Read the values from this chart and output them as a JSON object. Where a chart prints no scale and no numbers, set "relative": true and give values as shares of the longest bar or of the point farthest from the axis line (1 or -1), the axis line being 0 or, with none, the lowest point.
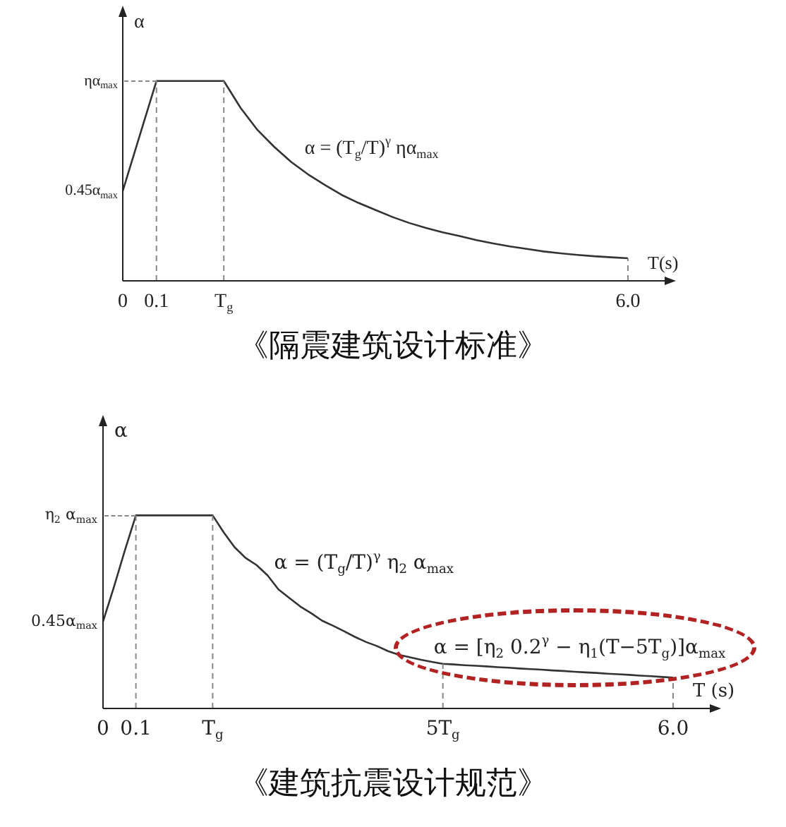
{
  "chart_data": [
    {
      "type": "line",
      "relative": true,
      "title": "《隔震建筑设计标准》",
      "ylabel": "α",
      "xlabel": "T(s)",
      "legend": false,
      "marker": "none",
      "line_style": "solid",
      "categories": [
        "0",
        null,
        "0.1",
        null,
        null,
        null,
        "T$_{g}$",
        null,
        null,
        null,
        null,
        null,
        null,
        null,
        null,
        null,
        null,
        null,
        null,
        null,
        null,
        null,
        null,
        null,
        null,
        null,
        null,
        null,
        null,
        null,
        "6.0"
      ],
      "series": [
        {
          "color": "#333333",
          "values": [
            0.45,
            0.725,
            1,
            1,
            1,
            1,
            1,
            0.865,
            0.755,
            0.67,
            0.595,
            0.533,
            0.48,
            0.43,
            0.39,
            0.355,
            0.32,
            0.29,
            0.265,
            0.243,
            0.224,
            0.204,
            0.187,
            0.172,
            0.16,
            0.147,
            0.138,
            0.13,
            0.123,
            0.118,
            0.113
          ]
        }
      ],
      "ref_lines": [
        {
          "axis": "x",
          "value": "0.1",
          "line_style": "dashed",
          "color": "#888888"
        },
        {
          "axis": "x",
          "value": "T$_{g}$",
          "line_style": "dashed",
          "color": "#888888"
        },
        {
          "axis": "x",
          "value": "6.0",
          "line_style": "dashed",
          "color": "#888888"
        }
      ],
      "annotations": [
        "ηα$_{max}$",
        "0.45α$_{max}$",
        "α = (T$_{g}$/T)$^{γ}$ ηα$_{max}$"
      ]
    },
    {
      "type": "line",
      "relative": true,
      "title": "《建筑抗震设计规范》",
      "ylabel": "α",
      "xlabel": "T (s)",
      "legend": false,
      "marker": "none",
      "line_style": "solid",
      "categories": [
        "0",
        null,
        null,
        "0.1",
        null,
        null,
        null,
        null,
        null,
        null,
        "T$_{g}$",
        null,
        null,
        null,
        null,
        null,
        null,
        null,
        null,
        null,
        null,
        null,
        null,
        null,
        null,
        null,
        null,
        null,
        null,
        null,
        null,
        "5T$_{g}$",
        null,
        null,
        null,
        null,
        null,
        null,
        null,
        null,
        null,
        null,
        null,
        null,
        null,
        null,
        null,
        null,
        null,
        null,
        null,
        null,
        "6.0"
      ],
      "series": [
        {
          "color": "#333333",
          "values": [
            0.45,
            0.63,
            0.82,
            1,
            1,
            1,
            1,
            1,
            1,
            1,
            1,
            0.913,
            0.835,
            0.78,
            0.743,
            0.69,
            0.617,
            0.572,
            0.528,
            0.493,
            0.454,
            0.428,
            0.4,
            0.37,
            0.344,
            0.323,
            0.297,
            0.278,
            0.265,
            0.252,
            0.241,
            0.231,
            0.228,
            0.224,
            0.221,
            0.218,
            0.214,
            0.211,
            0.207,
            0.204,
            0.201,
            0.197,
            0.194,
            0.19,
            0.187,
            0.184,
            0.18,
            0.177,
            0.174,
            0.17,
            0.167,
            0.163,
            0.16
          ]
        }
      ],
      "ref_lines": [
        {
          "axis": "x",
          "value": "0.1",
          "line_style": "dashed",
          "color": "#888888"
        },
        {
          "axis": "x",
          "value": "T$_{g}$",
          "line_style": "dashed",
          "color": "#888888"
        },
        {
          "axis": "x",
          "value": "5T$_{g}$",
          "line_style": "dashed",
          "color": "#888888"
        },
        {
          "axis": "x",
          "value": "6.0",
          "line_style": "dashed",
          "color": "#888888"
        }
      ],
      "annotations": [
        "η$_{2}$ α$_{max}$",
        "0.45α$_{max}$",
        "α = (T$_{g}$/T)$^{γ}$ η$_{2}$ α$_{max}$",
        "α = [η$_{2}$ 0.2$^{γ}$ − η$_{1}$(T−5T$_{g}$)]α$_{max}$"
      ]
    }
  ]
}
